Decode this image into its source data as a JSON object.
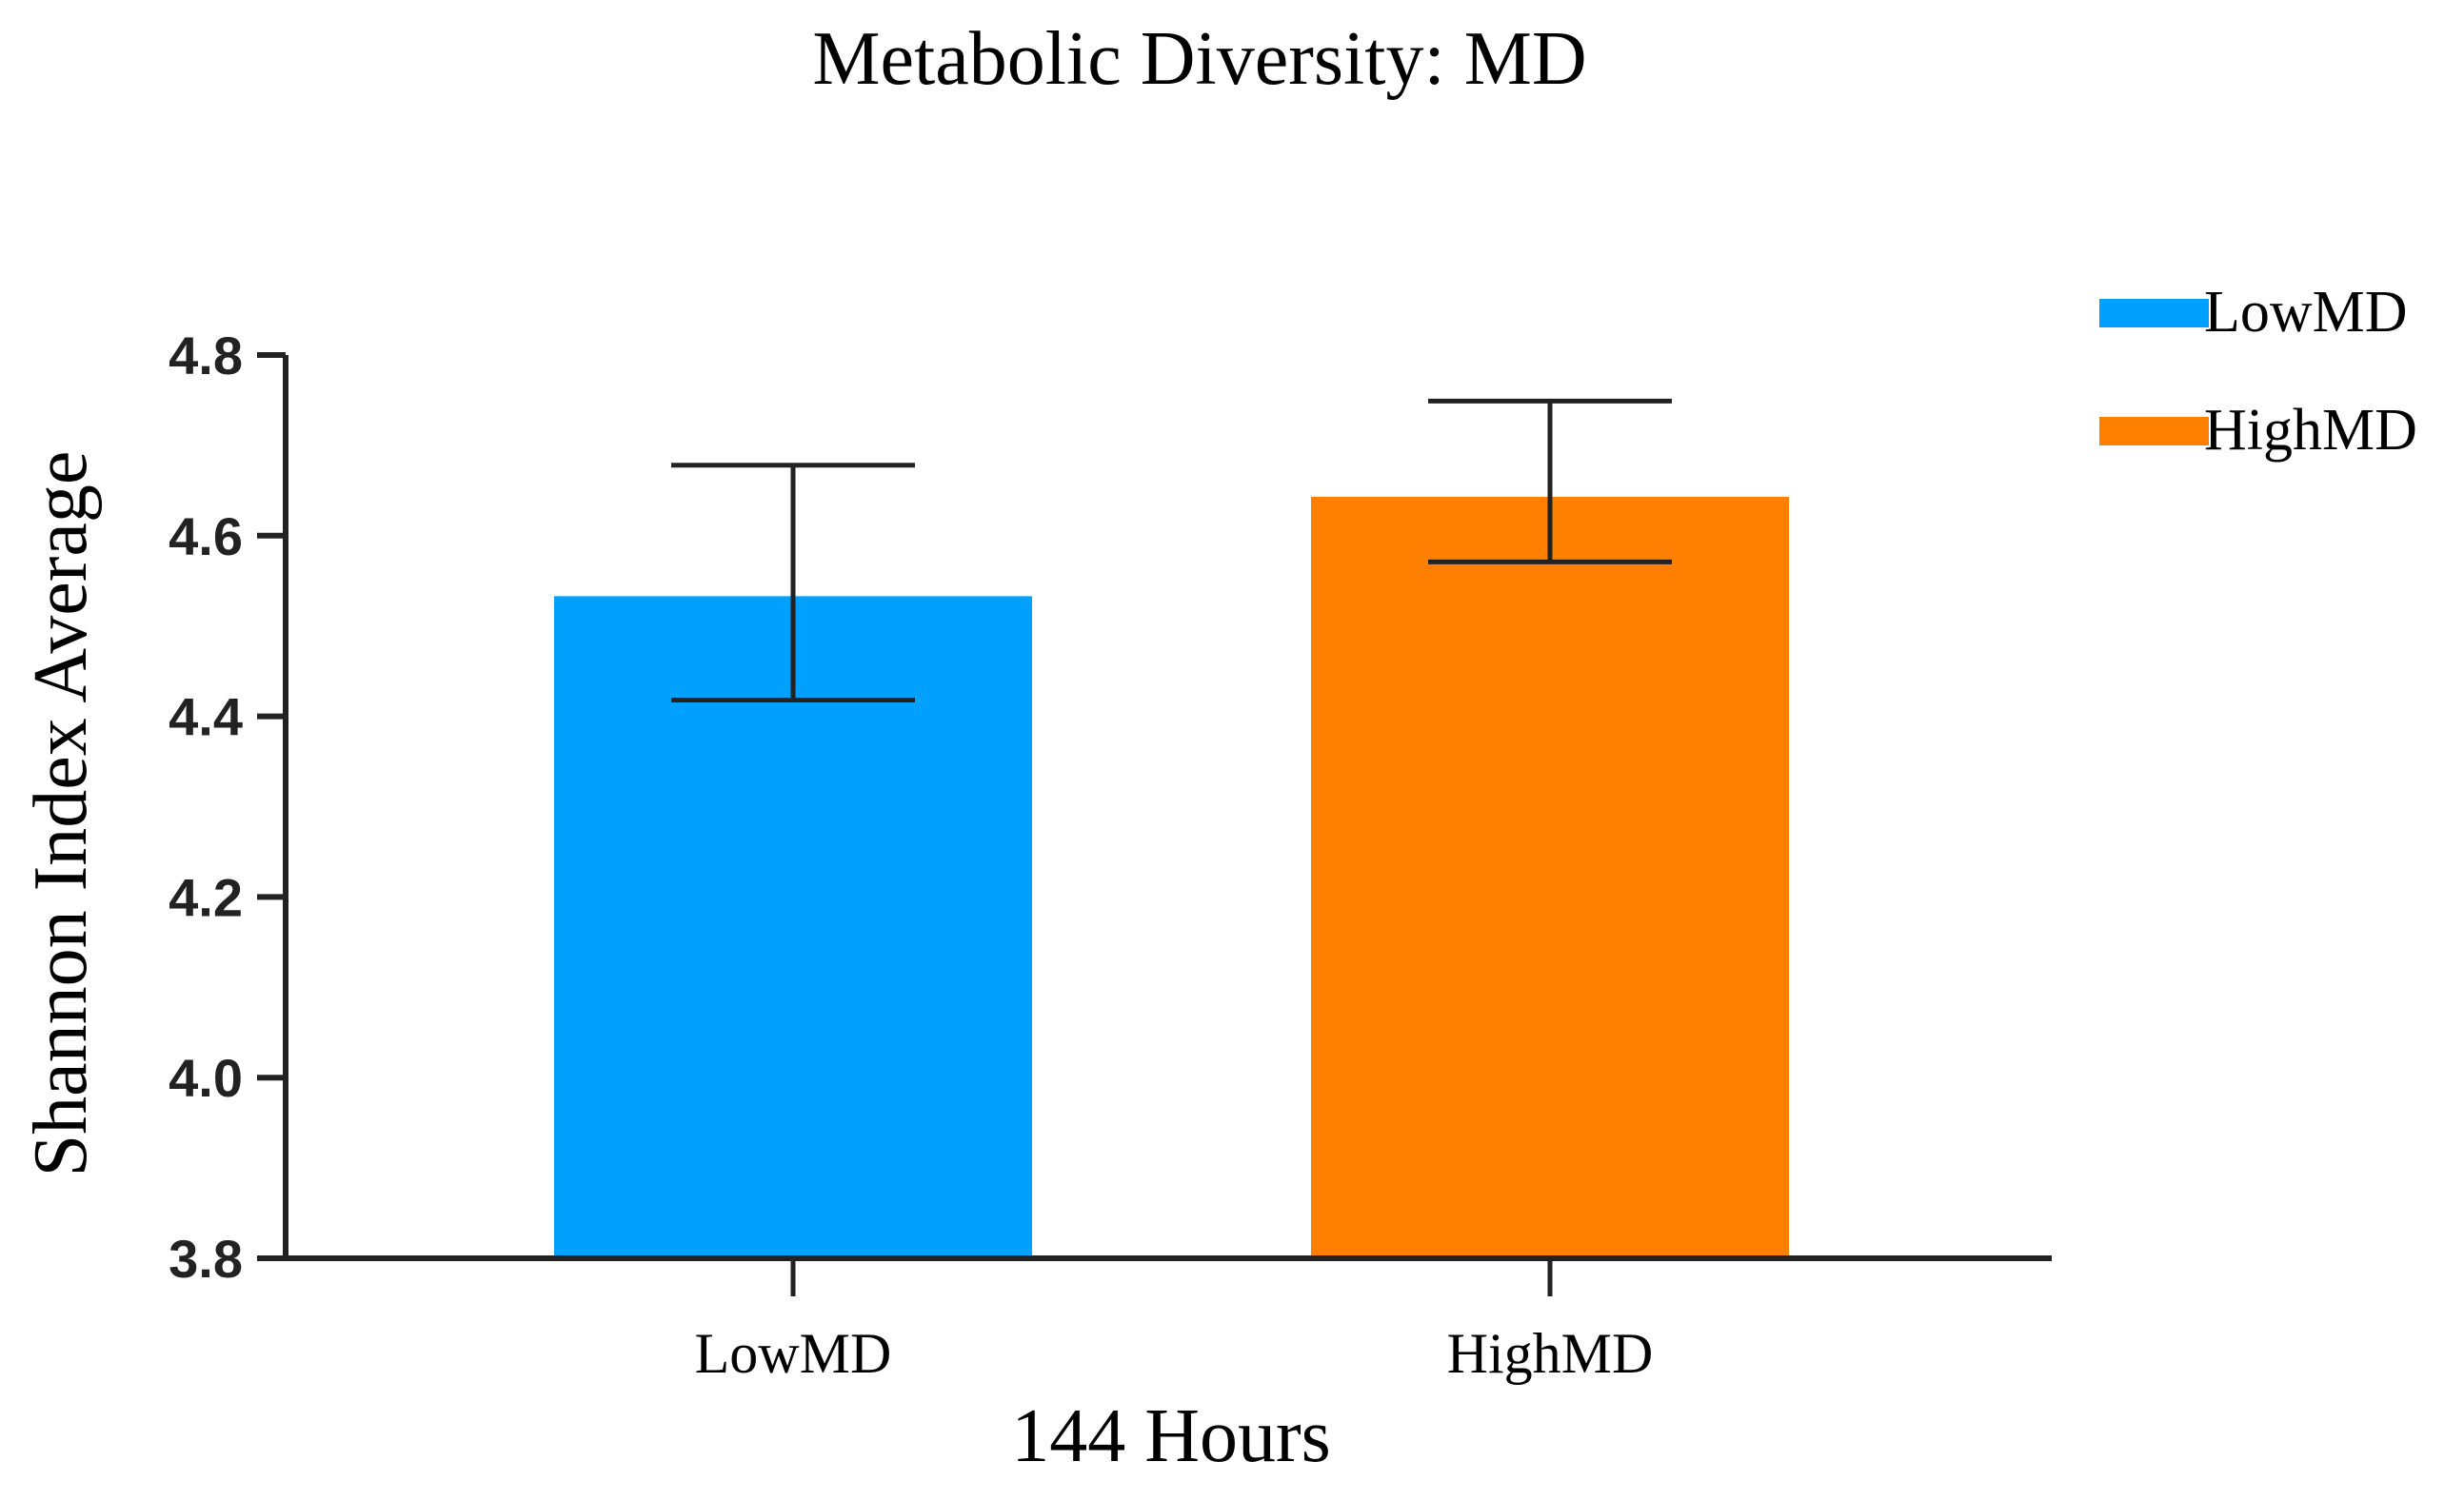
{
  "chart_data": {
    "type": "bar",
    "title": "Metabolic Diversity: MD",
    "xlabel": "144 Hours",
    "ylabel": "Shannon Index Average",
    "categories": [
      "LowMD",
      "HighMD"
    ],
    "values": [
      4.533,
      4.643
    ],
    "error_bars": [
      {
        "lower": 4.418,
        "upper": 4.678
      },
      {
        "lower": 4.571,
        "upper": 4.749
      }
    ],
    "colors": [
      "#00a0ff",
      "#ff8000"
    ],
    "ylim": [
      3.8,
      4.8
    ],
    "yticks": [
      "3.8",
      "4.0",
      "4.2",
      "4.4",
      "4.6",
      "4.8"
    ],
    "grid": false,
    "legend": {
      "placement": "top-right",
      "entries": [
        {
          "label": "LowMD",
          "color": "#00a0ff"
        },
        {
          "label": "HighMD",
          "color": "#ff8000"
        }
      ]
    }
  }
}
